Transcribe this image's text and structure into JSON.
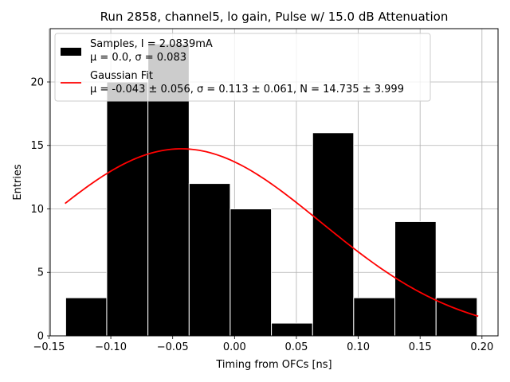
{
  "chart_data": {
    "type": "bar",
    "title": "Run 2858, channel5, lo gain, Pulse w/ 15.0 dB Attenuation",
    "xlabel": "Timing from OFCs [ns]",
    "ylabel": "Entries",
    "xlim": [
      -0.149,
      0.213
    ],
    "ylim": [
      0,
      24.2
    ],
    "xticks": [
      -0.15,
      -0.1,
      -0.05,
      0.0,
      0.05,
      0.1,
      0.15,
      0.2
    ],
    "xtick_labels": [
      "−0.15",
      "−0.10",
      "−0.05",
      "0.00",
      "0.05",
      "0.10",
      "0.15",
      "0.20"
    ],
    "yticks": [
      0,
      5,
      10,
      15,
      20
    ],
    "ytick_labels": [
      "0",
      "5",
      "10",
      "15",
      "20"
    ],
    "grid": true,
    "legend_location": "upper-left",
    "histogram": {
      "name": "Samples",
      "color": "#000000",
      "bins": [
        {
          "left": -0.1365,
          "right": -0.1033,
          "value": 3
        },
        {
          "left": -0.1033,
          "right": -0.07,
          "value": 20
        },
        {
          "left": -0.07,
          "right": -0.0367,
          "value": 23
        },
        {
          "left": -0.0367,
          "right": -0.0035,
          "value": 12
        },
        {
          "left": -0.0035,
          "right": 0.0298,
          "value": 10
        },
        {
          "left": 0.0298,
          "right": 0.0631,
          "value": 1
        },
        {
          "left": 0.0631,
          "right": 0.0963,
          "value": 16
        },
        {
          "left": 0.0963,
          "right": 0.1296,
          "value": 3
        },
        {
          "left": 0.1296,
          "right": 0.1629,
          "value": 9
        },
        {
          "left": 0.1629,
          "right": 0.1961,
          "value": 3
        }
      ]
    },
    "fit": {
      "name": "Gaussian Fit",
      "color": "#ff0000",
      "mu": -0.043,
      "sigma": 0.113,
      "N": 14.735,
      "x_range": [
        -0.137,
        0.197
      ]
    },
    "legend": [
      {
        "label_line1": "Samples, I = 2.0839mA",
        "label_line2": "μ = 0.0, σ = 0.083"
      },
      {
        "label_line1": "Gaussian Fit",
        "label_line2": "μ = -0.043 ± 0.056, σ = 0.113 ± 0.061, N = 14.735 ± 3.999"
      }
    ]
  }
}
